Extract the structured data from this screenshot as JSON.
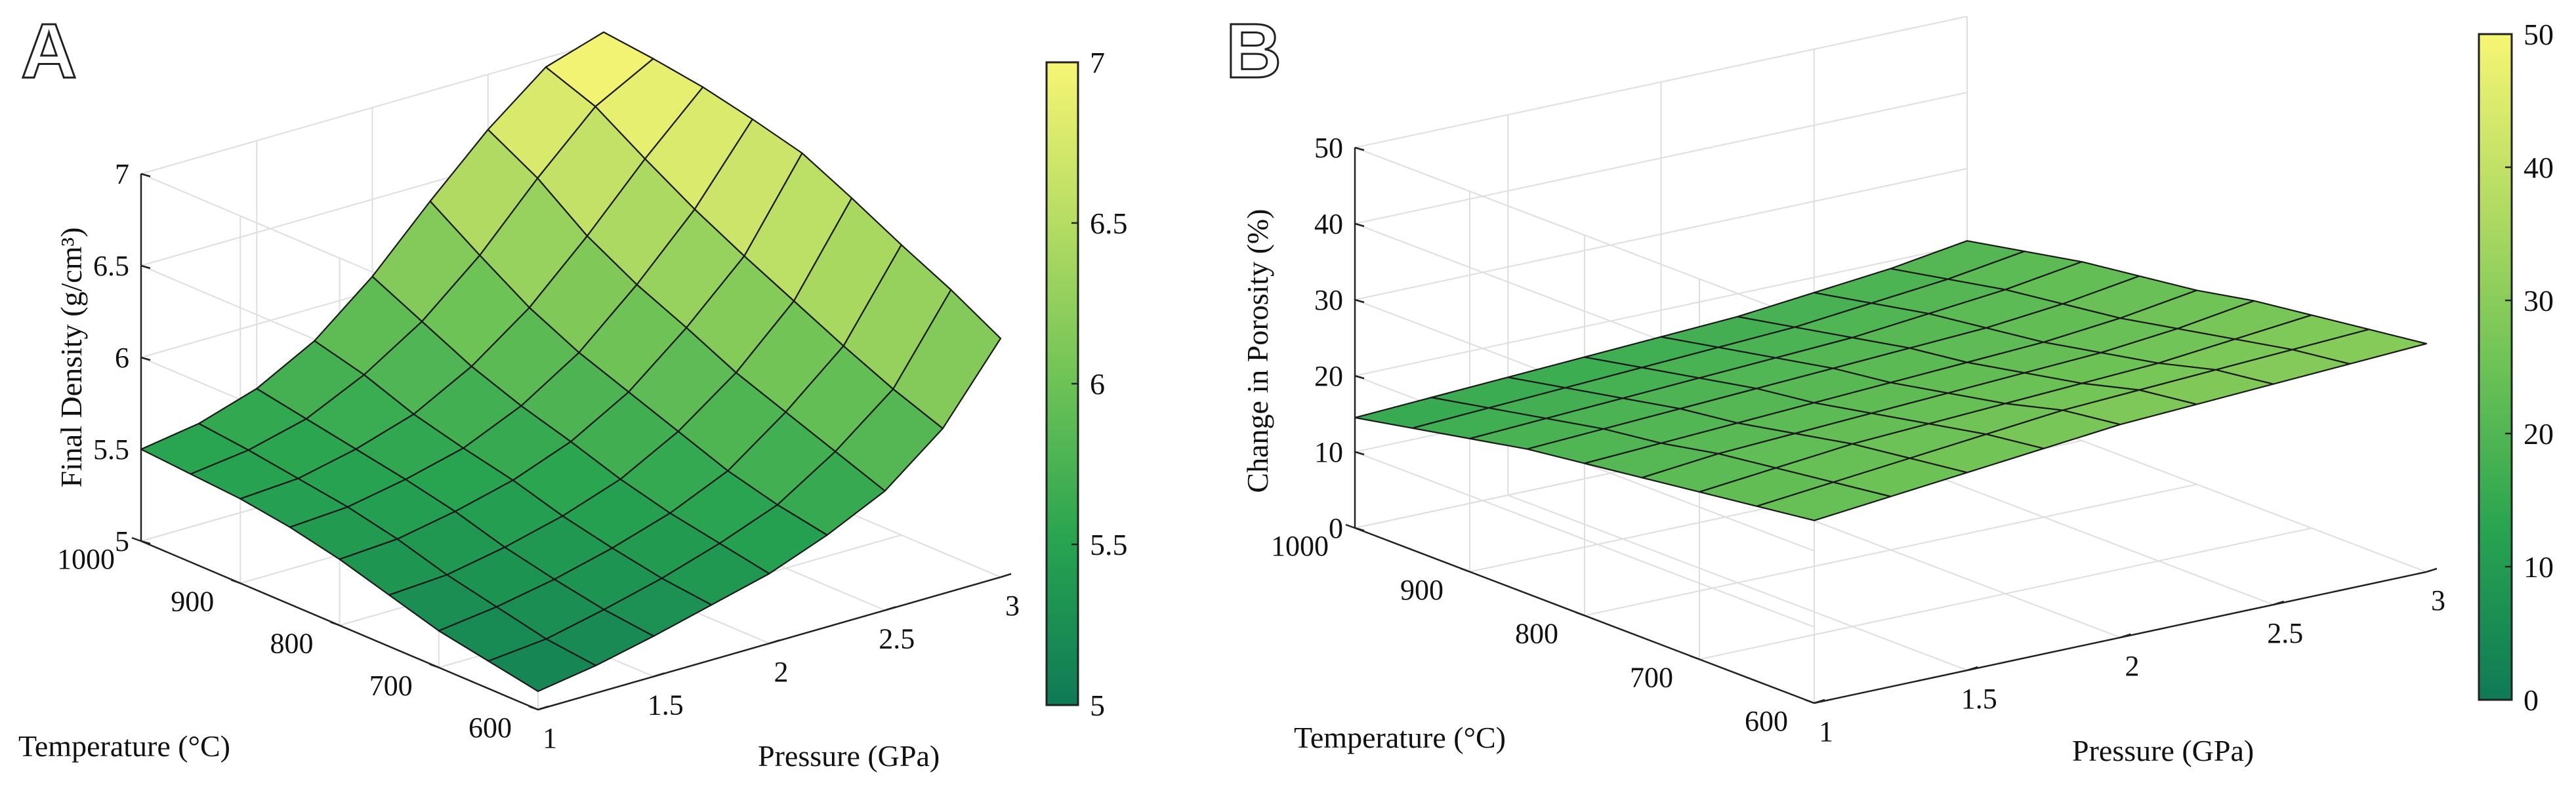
{
  "figure": {
    "panel_labels": [
      "A",
      "B"
    ]
  },
  "chart_data": [
    {
      "type": "surface",
      "panel": "A",
      "zlabel": "Final Density (g/cm³)",
      "xlabel": "Pressure (GPa)",
      "ylabel": "Temperature (°C)",
      "x": [
        1.0,
        1.25,
        1.5,
        1.75,
        2.0,
        2.25,
        2.5,
        2.75,
        3.0
      ],
      "y": [
        600,
        650,
        700,
        750,
        800,
        850,
        900,
        950,
        1000
      ],
      "z": [
        [
          5.1,
          5.15,
          5.22,
          5.3,
          5.38,
          5.5,
          5.65,
          5.9,
          6.3
        ],
        [
          5.15,
          5.18,
          5.25,
          5.33,
          5.43,
          5.55,
          5.75,
          6.0,
          6.45
        ],
        [
          5.2,
          5.24,
          5.3,
          5.38,
          5.48,
          5.62,
          5.85,
          6.12,
          6.58
        ],
        [
          5.28,
          5.3,
          5.36,
          5.44,
          5.55,
          5.72,
          5.95,
          6.25,
          6.72
        ],
        [
          5.36,
          5.38,
          5.44,
          5.52,
          5.64,
          5.82,
          6.08,
          6.38,
          6.85
        ],
        [
          5.42,
          5.44,
          5.5,
          5.58,
          5.72,
          5.92,
          6.2,
          6.52,
          6.92
        ],
        [
          5.46,
          5.48,
          5.55,
          5.65,
          5.82,
          6.05,
          6.35,
          6.68,
          6.98
        ],
        [
          5.48,
          5.52,
          5.6,
          5.75,
          5.95,
          6.22,
          6.55,
          6.85,
          7.02
        ],
        [
          5.5,
          5.55,
          5.65,
          5.82,
          6.08,
          6.4,
          6.7,
          6.95,
          7.05
        ]
      ],
      "xlim": [
        1,
        3
      ],
      "ylim": [
        600,
        1000
      ],
      "zlim": [
        5,
        7
      ],
      "xticks": [
        1,
        1.5,
        2,
        2.5,
        3
      ],
      "yticks": [
        600,
        700,
        800,
        900,
        1000
      ],
      "zticks": [
        5,
        5.5,
        6,
        6.5,
        7
      ],
      "xtick_labels": [
        "1",
        "1.5",
        "2",
        "2.5",
        "3"
      ],
      "ytick_labels": [
        "600",
        "700",
        "800",
        "900",
        "1000"
      ],
      "ztick_labels": [
        "5",
        "5.5",
        "6",
        "6.5",
        "7"
      ],
      "colorbar": {
        "min": 5,
        "max": 7,
        "ticks": [
          5,
          5.5,
          6,
          6.5,
          7
        ],
        "tick_labels": [
          "5",
          "5.5",
          "6",
          "6.5",
          "7"
        ]
      },
      "colormap": [
        "#0f7a56",
        "#27a350",
        "#6dc256",
        "#b5dc63",
        "#f7f574"
      ],
      "grid": true
    },
    {
      "type": "surface",
      "panel": "B",
      "zlabel": "Change in Porosity (%)",
      "xlabel": "Pressure (GPa)",
      "ylabel": "Temperature (°C)",
      "x": [
        1.0,
        1.25,
        1.5,
        1.75,
        2.0,
        2.25,
        2.5,
        2.75,
        3.0
      ],
      "y": [
        600,
        650,
        700,
        750,
        800,
        850,
        900,
        950,
        1000
      ],
      "z": [
        [
          24,
          25,
          26,
          27,
          28,
          28.5,
          29,
          29.5,
          30
        ],
        [
          23,
          24,
          25,
          26,
          27,
          27.5,
          28,
          28.5,
          29
        ],
        [
          22,
          23,
          24,
          24.5,
          25,
          25.5,
          26,
          27,
          28
        ],
        [
          21,
          22,
          22.5,
          23,
          23.5,
          24,
          24.5,
          25.5,
          27
        ],
        [
          20,
          20.5,
          21,
          21.5,
          22,
          22.5,
          23,
          24,
          25.5
        ],
        [
          19,
          19.5,
          20,
          20.5,
          21,
          21.5,
          22,
          23,
          24.5
        ],
        [
          17.5,
          18,
          18.5,
          19,
          19.5,
          20,
          21,
          22,
          23.5
        ],
        [
          16,
          16.5,
          17,
          17.5,
          18,
          18.5,
          19.5,
          20.5,
          22
        ],
        [
          14.5,
          15,
          15.5,
          16,
          16.5,
          17,
          18,
          19,
          20.5
        ]
      ],
      "xlim": [
        1,
        3
      ],
      "ylim": [
        600,
        1000
      ],
      "zlim": [
        0,
        50
      ],
      "xticks": [
        1,
        1.5,
        2,
        2.5,
        3
      ],
      "yticks": [
        600,
        700,
        800,
        900,
        1000
      ],
      "zticks": [
        0,
        10,
        20,
        30,
        40,
        50
      ],
      "xtick_labels": [
        "1",
        "1.5",
        "2",
        "2.5",
        "3"
      ],
      "ytick_labels": [
        "600",
        "700",
        "800",
        "900",
        "1000"
      ],
      "ztick_labels": [
        "0",
        "10",
        "20",
        "30",
        "40",
        "50"
      ],
      "colorbar": {
        "min": 0,
        "max": 50,
        "ticks": [
          0,
          10,
          20,
          30,
          40,
          50
        ],
        "tick_labels": [
          "0",
          "10",
          "20",
          "30",
          "40",
          "50"
        ]
      },
      "colormap": [
        "#0f7a56",
        "#27a350",
        "#6dc256",
        "#b5dc63",
        "#f7f574"
      ],
      "grid": true
    }
  ]
}
